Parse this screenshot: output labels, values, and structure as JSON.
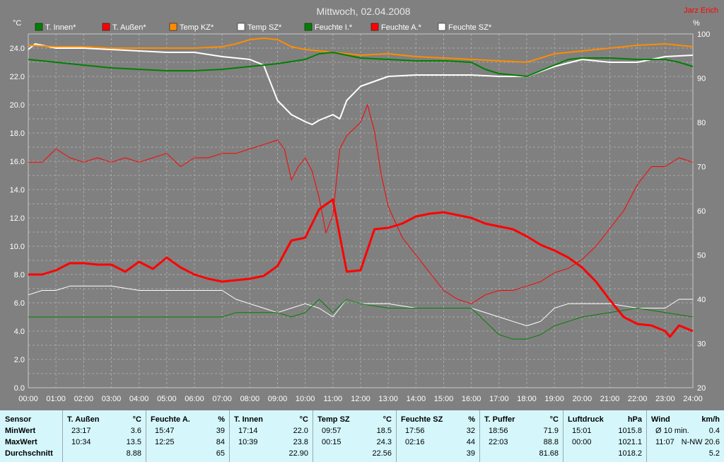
{
  "title": "Mittwoch, 02.04.2008",
  "author": "Jarz Erich",
  "axis_units": {
    "left": "°C",
    "right": "%"
  },
  "colors": {
    "background": "#808080",
    "t_innen": "#008000",
    "t_aussen": "#ff0000",
    "temp_kz": "#ff8c00",
    "temp_sz": "#ffffff",
    "feuchte_i": "#008000",
    "feuchte_a": "#ff0000",
    "feuchte_sz": "#ffffff"
  },
  "chart_data": {
    "type": "line",
    "title": "Mittwoch, 02.04.2008",
    "ylabel": "°C",
    "y2label": "%",
    "xlim": [
      0,
      24
    ],
    "ylim": [
      0,
      25
    ],
    "y2lim": [
      20,
      100
    ],
    "grid": true,
    "legend_position": "top",
    "x_ticks": [
      "00:00",
      "01:00",
      "02:00",
      "03:00",
      "04:00",
      "05:00",
      "06:00",
      "07:00",
      "08:00",
      "09:00",
      "10:00",
      "11:00",
      "12:00",
      "13:00",
      "14:00",
      "15:00",
      "16:00",
      "17:00",
      "18:00",
      "19:00",
      "20:00",
      "21:00",
      "22:00",
      "23:00",
      "24:00"
    ],
    "y_ticks": [
      "0.0",
      "2.0",
      "4.0",
      "6.0",
      "8.0",
      "10.0",
      "12.0",
      "14.0",
      "16.0",
      "18.0",
      "20.0",
      "22.0",
      "24.0"
    ],
    "y2_ticks": [
      "20",
      "30",
      "40",
      "50",
      "60",
      "70",
      "80",
      "90",
      "100"
    ],
    "series": [
      {
        "name": "T. Innen*",
        "axis": "left",
        "color": "#008000",
        "width": 2,
        "x": [
          0,
          1,
          2,
          3,
          4,
          5,
          6,
          7,
          8,
          9,
          10,
          10.5,
          11,
          11.5,
          12,
          13,
          14,
          15,
          16,
          16.5,
          17,
          17.5,
          18,
          18.5,
          19,
          19.5,
          20,
          21,
          22,
          23,
          23.5,
          24
        ],
        "y": [
          23.2,
          23.0,
          22.8,
          22.6,
          22.5,
          22.4,
          22.4,
          22.5,
          22.7,
          22.9,
          23.2,
          23.6,
          23.7,
          23.5,
          23.3,
          23.2,
          23.1,
          23.1,
          23.0,
          22.5,
          22.2,
          22.1,
          22.0,
          22.4,
          22.8,
          23.2,
          23.3,
          23.3,
          23.2,
          23.2,
          23.0,
          22.7
        ]
      },
      {
        "name": "T. Außen*",
        "axis": "left",
        "color": "#ff0000",
        "width": 3,
        "x": [
          0,
          0.5,
          1,
          1.5,
          2,
          2.5,
          3,
          3.5,
          4,
          4.5,
          5,
          5.5,
          6,
          6.5,
          7,
          7.5,
          8,
          8.5,
          9,
          9.5,
          10,
          10.5,
          11,
          11.5,
          12,
          12.5,
          13,
          13.5,
          14,
          14.5,
          15,
          15.5,
          16,
          16.5,
          17,
          17.5,
          18,
          18.5,
          19,
          19.5,
          20,
          20.5,
          21,
          21.5,
          22,
          22.5,
          23,
          23.17,
          23.5,
          24
        ],
        "y": [
          8.0,
          8.0,
          8.3,
          8.8,
          8.8,
          8.7,
          8.7,
          8.2,
          8.9,
          8.4,
          9.2,
          8.5,
          8.0,
          7.7,
          7.5,
          7.6,
          7.7,
          7.9,
          8.6,
          10.4,
          10.6,
          12.6,
          13.3,
          8.2,
          8.3,
          11.2,
          11.3,
          11.6,
          12.1,
          12.3,
          12.4,
          12.2,
          12.0,
          11.6,
          11.4,
          11.2,
          10.7,
          10.1,
          9.7,
          9.2,
          8.5,
          7.5,
          6.2,
          5.0,
          4.5,
          4.4,
          4.0,
          3.6,
          4.4,
          4.0
        ]
      },
      {
        "name": "Temp KZ*",
        "axis": "left",
        "color": "#ff8c00",
        "width": 2,
        "x": [
          0,
          1,
          2,
          3,
          4,
          5,
          6,
          7,
          7.5,
          8,
          8.5,
          9,
          9.5,
          10,
          11,
          12,
          13,
          14,
          15,
          16,
          17,
          18,
          19,
          20,
          21,
          22,
          23,
          24
        ],
        "y": [
          24.2,
          24.1,
          24.1,
          24.0,
          24.0,
          24.0,
          24.0,
          24.1,
          24.3,
          24.6,
          24.7,
          24.6,
          24.1,
          23.9,
          23.7,
          23.5,
          23.6,
          23.4,
          23.3,
          23.2,
          23.1,
          23.0,
          23.6,
          23.8,
          24.0,
          24.2,
          24.3,
          24.1
        ]
      },
      {
        "name": "Temp SZ*",
        "axis": "left",
        "color": "#ffffff",
        "width": 2,
        "x": [
          0,
          0.25,
          1,
          2,
          3,
          4,
          5,
          6,
          7,
          7.5,
          8,
          8.5,
          9,
          9.5,
          10,
          10.25,
          10.5,
          11,
          11.25,
          11.5,
          12,
          13,
          14,
          15,
          16,
          17,
          18,
          19,
          20,
          21,
          22,
          23,
          24
        ],
        "y": [
          23.9,
          24.3,
          24.0,
          24.0,
          23.9,
          23.8,
          23.7,
          23.7,
          23.4,
          23.3,
          23.2,
          22.8,
          20.3,
          19.3,
          18.8,
          18.6,
          18.9,
          19.3,
          19.0,
          20.3,
          21.3,
          22.0,
          22.1,
          22.1,
          22.1,
          22.0,
          22.0,
          22.7,
          23.2,
          23.0,
          23.0,
          23.4,
          23.5
        ]
      },
      {
        "name": "Feuchte I.*",
        "axis": "right",
        "color": "#008000",
        "width": 1,
        "x": [
          0,
          1,
          2,
          3,
          4,
          5,
          6,
          7,
          7.5,
          8,
          9,
          9.5,
          10,
          10.5,
          11,
          11.5,
          12,
          13,
          14,
          15,
          16,
          16.5,
          17,
          17.5,
          18,
          18.5,
          19,
          19.5,
          20,
          21,
          22,
          23,
          24
        ],
        "y": [
          36,
          36,
          36,
          36,
          36,
          36,
          36,
          36,
          37,
          37,
          37,
          36,
          37,
          40,
          37,
          40,
          39,
          38,
          38,
          38,
          38,
          35,
          32,
          31,
          31,
          32,
          34,
          35,
          36,
          37,
          38,
          37,
          36
        ]
      },
      {
        "name": "Feuchte A.*",
        "axis": "right",
        "color": "#ff0000",
        "width": 1,
        "x": [
          0,
          0.5,
          1,
          1.5,
          2,
          2.5,
          3,
          3.5,
          4,
          4.5,
          5,
          5.5,
          6,
          6.5,
          7,
          7.5,
          8,
          8.5,
          9,
          9.25,
          9.5,
          9.75,
          10,
          10.25,
          10.5,
          10.75,
          11,
          11.25,
          11.5,
          12,
          12.25,
          12.5,
          12.75,
          13,
          13.5,
          14,
          14.5,
          15,
          15.5,
          16,
          16.5,
          17,
          17.5,
          18,
          18.5,
          19,
          19.5,
          20,
          20.5,
          21,
          21.5,
          22,
          22.5,
          23,
          23.5,
          24
        ],
        "y": [
          71,
          71,
          74,
          72,
          71,
          72,
          71,
          72,
          71,
          72,
          73,
          70,
          72,
          72,
          73,
          73,
          74,
          75,
          76,
          74,
          67,
          70,
          72,
          69,
          63,
          55,
          59,
          74,
          77,
          80,
          84,
          78,
          68,
          61,
          54,
          50,
          46,
          42,
          40,
          39,
          41,
          42,
          42,
          43,
          44,
          46,
          47,
          49,
          52,
          56,
          60,
          66,
          70,
          70,
          72,
          71
        ]
      },
      {
        "name": "Feuchte SZ*",
        "axis": "right",
        "color": "#ffffff",
        "width": 1,
        "x": [
          0,
          0.5,
          1,
          1.5,
          2,
          3,
          4,
          5,
          6,
          7,
          7.5,
          8,
          8.5,
          9,
          9.5,
          10,
          10.5,
          11,
          11.5,
          12,
          13,
          14,
          15,
          16,
          17,
          17.5,
          18,
          18.5,
          19,
          19.5,
          20,
          21,
          22,
          23,
          23.5,
          24
        ],
        "y": [
          41,
          42,
          42,
          43,
          43,
          43,
          42,
          42,
          42,
          42,
          40,
          39,
          38,
          37,
          38,
          39,
          38,
          36,
          40,
          39,
          39,
          38,
          38,
          38,
          36,
          35,
          34,
          35,
          38,
          39,
          39,
          39,
          38,
          38,
          40,
          40
        ]
      }
    ]
  },
  "stats": {
    "row_labels": [
      "Sensor",
      "MinWert",
      "MaxWert",
      "Durchschnitt"
    ],
    "columns": [
      {
        "header": "T. Außen",
        "unit": "°C",
        "min_time": "23:17",
        "min": "3.6",
        "max_time": "10:34",
        "max": "13.5",
        "avg": "8.88"
      },
      {
        "header": "Feuchte A.",
        "unit": "%",
        "min_time": "15:47",
        "min": "39",
        "max_time": "12:25",
        "max": "84",
        "avg": "65"
      },
      {
        "header": "T. Innen",
        "unit": "°C",
        "min_time": "17:14",
        "min": "22.0",
        "max_time": "10:39",
        "max": "23.8",
        "avg": "22.90"
      },
      {
        "header": "Temp SZ",
        "unit": "°C",
        "min_time": "09:57",
        "min": "18.5",
        "max_time": "00:15",
        "max": "24.3",
        "avg": "22.56"
      },
      {
        "header": "Feuchte SZ",
        "unit": "%",
        "min_time": "17:56",
        "min": "32",
        "max_time": "02:16",
        "max": "44",
        "avg": "39"
      },
      {
        "header": "T. Puffer",
        "unit": "°C",
        "min_time": "18:56",
        "min": "71.9",
        "max_time": "22:03",
        "max": "88.8",
        "avg": "81.68"
      },
      {
        "header": "Luftdruck",
        "unit": "hPa",
        "min_time": "15:01",
        "min": "1015.8",
        "max_time": "00:00",
        "max": "1021.1",
        "avg": "1018.2"
      },
      {
        "header": "Wind",
        "unit": "km/h",
        "min_time": "Ø 10 min.",
        "min": "0.4",
        "max_time": "11:07",
        "max": "N-NW 20.6",
        "avg": "5.2"
      }
    ]
  }
}
